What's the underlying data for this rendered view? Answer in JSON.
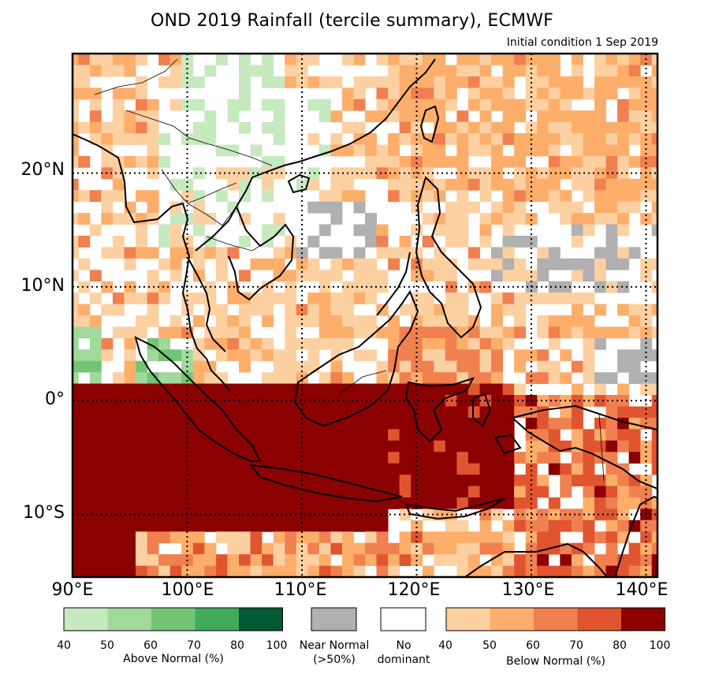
{
  "title": "OND 2019 Rainfall (tercile summary), ECMWF",
  "subtitle": "Initial condition 1 Sep 2019",
  "map": {
    "region": "Southeast Asia",
    "lon_range": [
      90,
      141
    ],
    "lat_range": [
      -15.5,
      30.5
    ],
    "lon_labels": [
      "90°E",
      "100°E",
      "110°E",
      "120°E",
      "130°E",
      "140°E"
    ],
    "lat_labels": [
      "20°N",
      "10°N",
      "0°",
      "10°S"
    ],
    "lon_values": [
      90,
      100,
      110,
      120,
      130,
      140
    ],
    "lat_values": [
      20,
      10,
      0,
      -10
    ]
  },
  "legend": {
    "above_normal": {
      "label": "Above Normal (%)",
      "ticks": [
        "40",
        "50",
        "60",
        "70",
        "80",
        "100"
      ],
      "colors": [
        "#c7e9c0",
        "#a1d99b",
        "#74c476",
        "#41ab5d",
        "#005a32"
      ]
    },
    "near_normal": {
      "label_line1": "Near Normal",
      "label_line2": "(>50%)",
      "color": "#b0b0b0"
    },
    "no_dominant": {
      "label_line1": "No",
      "label_line2": "dominant",
      "color": "#ffffff"
    },
    "below_normal": {
      "label": "Below Normal (%)",
      "ticks": [
        "40",
        "50",
        "60",
        "70",
        "80",
        "100"
      ],
      "colors": [
        "#fdd0a2",
        "#fdae6b",
        "#f08050",
        "#e05530",
        "#8b0000"
      ]
    }
  }
}
